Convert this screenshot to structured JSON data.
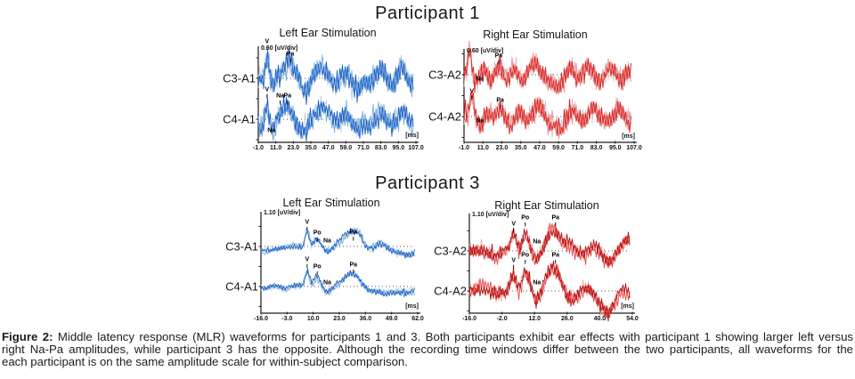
{
  "titles": {
    "participant1": "Participant 1",
    "participant3": "Participant 3"
  },
  "caption": {
    "label": "Figure 2:",
    "lines": [
      " Middle latency response (MLR) waveforms for participants 1 and 3. Both participants exhibit ear effects with participant 1 showing larger left versus",
      "right Na-Pa amplitudes, while participant 3 has the opposite. Although the recording time windows differ between the two participants, all waveforms for the",
      "each participant is on the same amplitude scale for within-subject comparison."
    ]
  },
  "chart_data": {
    "type": "line",
    "description": "Middle latency response (MLR) EEG waveforms; overlaid averaged repetitions per channel",
    "panels": [
      {
        "participant": "Participant 1",
        "title": "Left Ear Stimulation",
        "scale_label": "0.60 [uV/div]",
        "ms_label": "[ms]",
        "x_ticks": [
          "-1.0",
          "11.0",
          "23.0",
          "35.0",
          "47.0",
          "59.0",
          "71.0",
          "83.0",
          "95.0",
          "107.0"
        ],
        "x_range_ms": [
          -1,
          107
        ],
        "trace_colors": [
          "#bdc7ce",
          "#6fabe2",
          "#1b5ec6"
        ],
        "channels": [
          {
            "label": "C3-A1",
            "seeds": [
              20,
              21,
              22
            ],
            "noise": 12,
            "slow": 3,
            "ssm": 8,
            "pre": 1,
            "bscale": 1,
            "bumps": [
              [
                5,
                26,
                1.1
              ],
              [
                9,
                -8,
                1.5
              ],
              [
                20,
                18,
                3.5
              ],
              [
                31,
                -16,
                3
              ],
              [
                42,
                12,
                4
              ],
              [
                52,
                -6,
                3
              ],
              [
                60,
                6,
                2.5
              ],
              [
                67,
                -14,
                3.5
              ],
              [
                76,
                -6,
                2.5
              ],
              [
                83,
                8,
                2.5
              ],
              [
                90,
                -8,
                2.5
              ],
              [
                97,
                12,
                2.5
              ],
              [
                104,
                -8,
                2.5
              ]
            ],
            "peaks": [
              [
                "V",
                5,
                -41
              ],
              [
                "Pa",
                21,
                -27
              ]
            ]
          },
          {
            "label": "C4-A1",
            "seeds": [
              23,
              24,
              25
            ],
            "noise": 11,
            "slow": 3,
            "ssm": 8,
            "pre": 1,
            "bscale": 1,
            "bumps": [
              [
                1,
                -12,
                1.2
              ],
              [
                5,
                16,
                1.1
              ],
              [
                9,
                -14,
                1.8
              ],
              [
                18,
                16,
                3.5
              ],
              [
                29,
                -12,
                3
              ],
              [
                43,
                12,
                4
              ],
              [
                52,
                -4,
                2.5
              ],
              [
                60,
                4,
                2.5
              ],
              [
                67,
                -11,
                3
              ],
              [
                75,
                -6,
                2.5
              ],
              [
                83,
                8,
                2.5
              ],
              [
                91,
                -7,
                2.5
              ],
              [
                98,
                8,
                2.5
              ],
              [
                104,
                -6,
                2
              ]
            ],
            "peaks": [
              [
                "V",
                5,
                -33
              ],
              [
                "Na",
                14,
                -26
              ],
              [
                "Pa",
                19,
                -26
              ],
              [
                "Na",
                8,
                13
              ]
            ]
          }
        ]
      },
      {
        "participant": "Participant 1",
        "title": "Right Ear Stimulation",
        "scale_label": "0.60 [uV/div]",
        "ms_label": "[ms]",
        "x_ticks": [
          "-1.0",
          "11.0",
          "23.0",
          "35.0",
          "47.0",
          "59.0",
          "71.0",
          "83.0",
          "95.0",
          "107.0"
        ],
        "x_range_ms": [
          -1,
          107
        ],
        "trace_colors": [
          "#cfbcbc",
          "#f08a8a",
          "#d81f1f"
        ],
        "channels": [
          {
            "label": "C3-A2",
            "seeds": [
              31,
              32,
              33
            ],
            "noise": 11,
            "slow": 3.5,
            "ssm": 8,
            "pre": 1,
            "bscale": 1,
            "bumps": [
              [
                2.5,
                28,
                1
              ],
              [
                7,
                -8,
                1.5
              ],
              [
                12,
                5,
                2
              ],
              [
                16,
                -6,
                2
              ],
              [
                21,
                10,
                2.5
              ],
              [
                26,
                -6,
                2
              ],
              [
                31,
                6,
                2
              ],
              [
                36,
                -8,
                2.5
              ],
              [
                43,
                12,
                3
              ],
              [
                50,
                -6,
                2.5
              ],
              [
                58,
                -14,
                3.5
              ],
              [
                66,
                8,
                2.5
              ],
              [
                72,
                -5,
                2
              ],
              [
                78,
                8,
                2.5
              ],
              [
                85,
                -8,
                2.5
              ],
              [
                92,
                8,
                2.5
              ],
              [
                99,
                -6,
                2
              ],
              [
                104,
                5,
                2
              ]
            ],
            "peaks": [
              [
                "Pa",
                21,
                -21
              ],
              [
                "Na",
                9,
                5
              ]
            ]
          },
          {
            "label": "C4-A2",
            "seeds": [
              34,
              35,
              36
            ],
            "noise": 11,
            "slow": 3.5,
            "ssm": 8,
            "pre": 1,
            "bscale": 1,
            "bumps": [
              [
                4,
                26,
                1.1
              ],
              [
                9,
                -10,
                1.8
              ],
              [
                14,
                5,
                2
              ],
              [
                22,
                10,
                2.5
              ],
              [
                28,
                -8,
                2.5
              ],
              [
                34,
                6,
                2
              ],
              [
                40,
                -6,
                2.5
              ],
              [
                46,
                12,
                3
              ],
              [
                53,
                -8,
                2.5
              ],
              [
                60,
                -14,
                3
              ],
              [
                68,
                6,
                2.5
              ],
              [
                74,
                -6,
                2
              ],
              [
                82,
                8,
                2.5
              ],
              [
                90,
                -6,
                2.5
              ],
              [
                97,
                8,
                2.5
              ],
              [
                103,
                -6,
                2
              ]
            ],
            "peaks": [
              [
                "V",
                4,
                -28
              ],
              [
                "Pa",
                22,
                -18
              ],
              [
                "Na",
                9,
                5
              ]
            ]
          }
        ]
      },
      {
        "participant": "Participant 3",
        "title": "Left Ear Stimulation",
        "scale_label": "1.10 [uV/div]",
        "x_ticks": [
          "-16.0",
          "-3.0",
          "10.0",
          "23.0",
          "36.0",
          "49.0",
          "62.0"
        ],
        "ms_label": "[ms]",
        "x_range_ms": [
          -16,
          62
        ],
        "trace_colors": [
          "#c4cdd4",
          "#6fabe2",
          "#1b5ec6"
        ],
        "channels": [
          {
            "label": "C3-A1",
            "seeds": [
              41,
              42,
              43
            ],
            "noise": 3.4,
            "slow": 2.5,
            "ssm": 6,
            "pre": 0.8,
            "bscale": 1,
            "bumps": [
              [
                -15,
                -4,
                3
              ],
              [
                -10,
                -3,
                4
              ],
              [
                7,
                19,
                1
              ],
              [
                12,
                9,
                1.6
              ],
              [
                17,
                -6,
                2
              ],
              [
                29,
                16,
                4
              ],
              [
                33,
                6,
                1.5
              ],
              [
                38,
                -4,
                2.5
              ],
              [
                44,
                4,
                2.5
              ],
              [
                52,
                -7,
                5
              ],
              [
                60,
                -6,
                4
              ]
            ],
            "peaks": [
              [
                "V",
                7,
                -27
              ],
              [
                "Po",
                12,
                -15
              ],
              [
                "Na",
                17,
                -6
              ],
              [
                "Pa",
                30,
                -16
              ]
            ]
          },
          {
            "label": "C4-A1",
            "seeds": [
              44,
              45,
              46
            ],
            "noise": 3.4,
            "slow": 2.5,
            "ssm": 6,
            "pre": 0.8,
            "bscale": 1,
            "bumps": [
              [
                -15,
                -4,
                3
              ],
              [
                -4,
                -4,
                2
              ],
              [
                7,
                17,
                1
              ],
              [
                12,
                10,
                1.6
              ],
              [
                17,
                -7,
                2
              ],
              [
                29,
                14,
                4
              ],
              [
                38,
                -5,
                2.5
              ],
              [
                45,
                -6,
                3
              ],
              [
                55,
                -9,
                5
              ]
            ],
            "peaks": [
              [
                "V",
                7,
                -30
              ],
              [
                "Po",
                12,
                -22
              ],
              [
                "Na",
                17,
                -4
              ],
              [
                "Pa",
                30,
                -24
              ]
            ]
          }
        ]
      },
      {
        "participant": "Participant 3",
        "title": "Right Ear Stimulation",
        "scale_label": "1.10 [uV/div]",
        "ms_label": "[ms]",
        "x_ticks": [
          "-16.0",
          "-2.0",
          "12.0",
          "26.0",
          "40.0",
          "54.0"
        ],
        "x_range_ms": [
          -16,
          54
        ],
        "trace_colors": [
          "#f4a0a0",
          "#e84444",
          "#b40f0f"
        ],
        "channels": [
          {
            "label": "C3-A2",
            "seeds": [
              51,
              52,
              53
            ],
            "noise": 7.5,
            "slow": 4,
            "ssm": 6,
            "pre": 1,
            "bscale": 1.1,
            "bumps": [
              [
                -10,
                4,
                3
              ],
              [
                -5,
                -5,
                2.5
              ],
              [
                3,
                16,
                1.2
              ],
              [
                5.5,
                -6,
                1.2
              ],
              [
                8,
                20,
                1.8
              ],
              [
                13,
                -8,
                1.8
              ],
              [
                20,
                20,
                3
              ],
              [
                27,
                6,
                2
              ],
              [
                33,
                -7,
                2.5
              ],
              [
                38,
                7,
                2.5
              ],
              [
                45,
                -12,
                3
              ],
              [
                51,
                8,
                2.5
              ]
            ],
            "peaks": [
              [
                "V",
                3,
                -30
              ],
              [
                "Po",
                8,
                -37
              ],
              [
                "Na",
                13,
                -10
              ],
              [
                "Pa",
                21,
                -37
              ]
            ]
          },
          {
            "label": "C4-A2",
            "seeds": [
              54,
              55,
              56
            ],
            "noise": 7.5,
            "slow": 4,
            "ssm": 6,
            "pre": 1,
            "bscale": 1.1,
            "bumps": [
              [
                -10,
                4,
                3
              ],
              [
                -5,
                -5,
                2.5
              ],
              [
                3,
                18,
                1.2
              ],
              [
                5.5,
                -6,
                1.2
              ],
              [
                8,
                22,
                1.8
              ],
              [
                13,
                -9,
                1.8
              ],
              [
                20,
                22,
                3
              ],
              [
                28,
                -10,
                2.5
              ],
              [
                34,
                6,
                2.5
              ],
              [
                43,
                -20,
                3.5
              ],
              [
                50,
                4,
                2
              ],
              [
                54,
                -8,
                2
              ]
            ],
            "peaks": [
              [
                "V",
                3,
                -34
              ],
              [
                "Po",
                8,
                -40
              ],
              [
                "Na",
                13,
                -9
              ],
              [
                "Pa",
                21,
                -40
              ]
            ]
          }
        ]
      }
    ]
  }
}
